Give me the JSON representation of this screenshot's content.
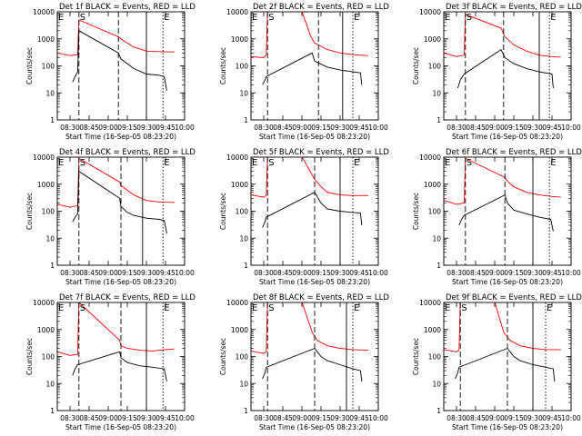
{
  "chart_data": {
    "type": "line",
    "y_scale": "log",
    "ylim": [
      1,
      10000
    ],
    "xlim": [
      "08:20",
      "10:00"
    ],
    "y_ticks": [
      1,
      10,
      100,
      1000,
      10000
    ],
    "y_tick_labels": [
      "1",
      "10",
      "100",
      "1000",
      "10000"
    ],
    "x_ticks": [
      "08:30",
      "08:45",
      "09:00",
      "09:15",
      "09:30",
      "09:45",
      "10:00"
    ],
    "x_tick_labels": [
      "08:30",
      "08:45",
      "09:00",
      "09:15",
      "09:30",
      "09:45",
      "10:00"
    ],
    "ylabel": "Counts/sec",
    "xlabel": "Start Time (16-Sep-05 08:23:20)",
    "colors": {
      "events": "#000000",
      "lld": "#ff0000",
      "markers": "#000000"
    },
    "panels": [
      {
        "title": "Det 1f  BLACK = Events, RED = LLD",
        "markers": [
          {
            "label": "E",
            "x": "08:20",
            "style": "dotted"
          },
          {
            "label": "S",
            "x": "08:37",
            "style": "dashed"
          },
          {
            "label": "",
            "x": "09:08",
            "style": "dashed"
          },
          {
            "label": "",
            "x": "09:30",
            "style": "solid"
          },
          {
            "label": "E",
            "x": "09:43",
            "style": "dotted"
          }
        ],
        "lld": {
          "x": [
            "08:20",
            "08:30",
            "08:36",
            "08:37",
            "09:08",
            "09:10",
            "09:15",
            "09:20",
            "09:30",
            "09:45",
            "09:52"
          ],
          "y": [
            300,
            240,
            260,
            5000,
            1200,
            1000,
            700,
            500,
            350,
            330,
            330
          ]
        },
        "events": {
          "x": [
            "08:32",
            "08:34",
            "08:36",
            "08:37",
            "09:08",
            "09:10",
            "09:15",
            "09:20",
            "09:30",
            "09:40",
            "09:44",
            "09:46"
          ],
          "y": [
            25,
            40,
            60,
            2000,
            300,
            180,
            120,
            80,
            50,
            45,
            40,
            12
          ]
        }
      },
      {
        "title": "Det 2f  BLACK = Events, RED = LLD",
        "markers": [
          {
            "label": "E",
            "x": "08:20",
            "style": "dotted"
          },
          {
            "label": "S",
            "x": "08:33",
            "style": "dashed"
          },
          {
            "label": "",
            "x": "09:13",
            "style": "dashed"
          },
          {
            "label": "",
            "x": "09:32",
            "style": "solid"
          },
          {
            "label": "E",
            "x": "09:40",
            "style": "dotted"
          }
        ],
        "lld": {
          "x": [
            "08:20",
            "08:30",
            "08:32",
            "08:33",
            "09:00",
            "09:07",
            "09:10",
            "09:20",
            "09:30",
            "09:40",
            "09:52"
          ],
          "y": [
            220,
            200,
            250,
            12000,
            12000,
            1200,
            700,
            400,
            300,
            260,
            240
          ]
        },
        "events": {
          "x": [
            "08:29",
            "08:31",
            "08:32",
            "09:08",
            "09:10",
            "09:20",
            "09:30",
            "09:40",
            "09:46",
            "09:47"
          ],
          "y": [
            20,
            30,
            40,
            300,
            150,
            90,
            70,
            60,
            55,
            20
          ]
        }
      },
      {
        "title": "Det 3f  BLACK = Events, RED = LLD",
        "markers": [
          {
            "label": "E",
            "x": "08:20",
            "style": "dotted"
          },
          {
            "label": "S",
            "x": "08:37",
            "style": "dashed"
          },
          {
            "label": "",
            "x": "09:07",
            "style": "dashed"
          },
          {
            "label": "",
            "x": "09:35",
            "style": "solid"
          },
          {
            "label": "E",
            "x": "09:43",
            "style": "dotted"
          }
        ],
        "lld": {
          "x": [
            "08:20",
            "08:30",
            "08:36",
            "08:37",
            "09:05",
            "09:08",
            "09:15",
            "09:25",
            "09:35",
            "09:45",
            "09:52"
          ],
          "y": [
            300,
            220,
            250,
            8000,
            2500,
            1200,
            600,
            350,
            250,
            220,
            210
          ]
        },
        "events": {
          "x": [
            "08:31",
            "08:33",
            "08:36",
            "09:05",
            "09:08",
            "09:15",
            "09:25",
            "09:35",
            "09:45",
            "09:46"
          ],
          "y": [
            15,
            30,
            50,
            400,
            200,
            120,
            80,
            60,
            50,
            15
          ]
        }
      },
      {
        "title": "Det 4f  BLACK = Events, RED = LLD",
        "markers": [
          {
            "label": "E",
            "x": "08:20",
            "style": "dotted"
          },
          {
            "label": "S",
            "x": "08:37",
            "style": "dashed"
          },
          {
            "label": "",
            "x": "09:10",
            "style": "dashed"
          },
          {
            "label": "",
            "x": "09:27",
            "style": "solid"
          },
          {
            "label": "E",
            "x": "09:43",
            "style": "dotted"
          }
        ],
        "lld": {
          "x": [
            "08:20",
            "08:30",
            "08:36",
            "08:37",
            "09:09",
            "09:10",
            "09:15",
            "09:20",
            "09:30",
            "09:40",
            "09:52"
          ],
          "y": [
            180,
            140,
            160,
            9000,
            1200,
            900,
            600,
            400,
            250,
            220,
            210
          ]
        },
        "events": {
          "x": [
            "08:32",
            "08:34",
            "08:36",
            "08:37",
            "09:09",
            "09:10",
            "09:15",
            "09:20",
            "09:30",
            "09:40",
            "09:44",
            "09:46"
          ],
          "y": [
            40,
            60,
            80,
            3000,
            300,
            150,
            90,
            70,
            55,
            50,
            45,
            15
          ]
        }
      },
      {
        "title": "Det 5f  BLACK = Events, RED = LLD",
        "markers": [
          {
            "label": "E",
            "x": "08:20",
            "style": "dotted"
          },
          {
            "label": "S",
            "x": "08:33",
            "style": "dashed"
          },
          {
            "label": "",
            "x": "09:10",
            "style": "dashed"
          },
          {
            "label": "",
            "x": "09:30",
            "style": "solid"
          },
          {
            "label": "E",
            "x": "09:40",
            "style": "dotted"
          }
        ],
        "lld": {
          "x": [
            "08:20",
            "08:30",
            "08:32",
            "08:33",
            "09:00",
            "09:10",
            "09:15",
            "09:20",
            "09:30",
            "09:40",
            "09:52"
          ],
          "y": [
            400,
            330,
            380,
            12000,
            12000,
            1500,
            800,
            500,
            400,
            380,
            380
          ]
        },
        "events": {
          "x": [
            "08:29",
            "08:31",
            "08:32",
            "09:10",
            "09:15",
            "09:20",
            "09:30",
            "09:40",
            "09:46",
            "09:47"
          ],
          "y": [
            25,
            40,
            60,
            500,
            200,
            120,
            100,
            90,
            85,
            30
          ]
        }
      },
      {
        "title": "Det 6f  BLACK = Events, RED = LLD",
        "markers": [
          {
            "label": "E",
            "x": "08:20",
            "style": "dotted"
          },
          {
            "label": "S",
            "x": "08:37",
            "style": "dashed"
          },
          {
            "label": "",
            "x": "09:08",
            "style": "dashed"
          },
          {
            "label": "",
            "x": "09:30",
            "style": "solid"
          },
          {
            "label": "E",
            "x": "09:43",
            "style": "dotted"
          }
        ],
        "lld": {
          "x": [
            "08:20",
            "08:30",
            "08:36",
            "08:37",
            "09:08",
            "09:10",
            "09:15",
            "09:25",
            "09:35",
            "09:45",
            "09:52"
          ],
          "y": [
            250,
            180,
            200,
            9000,
            1800,
            1300,
            800,
            500,
            400,
            350,
            330
          ]
        },
        "events": {
          "x": [
            "08:32",
            "08:34",
            "08:36",
            "09:08",
            "09:10",
            "09:15",
            "09:25",
            "09:35",
            "09:44",
            "09:46"
          ],
          "y": [
            30,
            50,
            70,
            400,
            200,
            110,
            80,
            60,
            50,
            18
          ]
        }
      },
      {
        "title": "Det 7f  BLACK = Events, RED = LLD",
        "markers": [
          {
            "label": "E",
            "x": "08:20",
            "style": "dotted"
          },
          {
            "label": "S",
            "x": "08:37",
            "style": "dashed"
          },
          {
            "label": "",
            "x": "09:10",
            "style": "dashed"
          },
          {
            "label": "",
            "x": "09:30",
            "style": "solid"
          },
          {
            "label": "E",
            "x": "09:43",
            "style": "dotted"
          }
        ],
        "lld": {
          "x": [
            "08:20",
            "08:30",
            "08:36",
            "08:37",
            "09:09",
            "09:10",
            "09:15",
            "09:25",
            "09:35",
            "09:45",
            "09:52"
          ],
          "y": [
            150,
            110,
            120,
            10000,
            400,
            250,
            200,
            170,
            160,
            180,
            190
          ]
        },
        "events": {
          "x": [
            "08:32",
            "08:34",
            "08:36",
            "09:09",
            "09:10",
            "09:15",
            "09:25",
            "09:35",
            "09:44",
            "09:46"
          ],
          "y": [
            20,
            35,
            50,
            150,
            90,
            60,
            45,
            40,
            35,
            12
          ]
        }
      },
      {
        "title": "Det 8f  BLACK = Events, RED = LLD",
        "markers": [
          {
            "label": "E",
            "x": "08:20",
            "style": "dotted"
          },
          {
            "label": "S",
            "x": "08:33",
            "style": "dashed"
          },
          {
            "label": "",
            "x": "09:10",
            "style": "dashed"
          },
          {
            "label": "",
            "x": "09:35",
            "style": "solid"
          },
          {
            "label": "E",
            "x": "09:40",
            "style": "dotted"
          }
        ],
        "lld": {
          "x": [
            "08:20",
            "08:30",
            "08:32",
            "08:33",
            "09:00",
            "09:08",
            "09:12",
            "09:20",
            "09:30",
            "09:40",
            "09:52"
          ],
          "y": [
            160,
            130,
            150,
            12000,
            12000,
            800,
            400,
            250,
            200,
            180,
            170
          ]
        },
        "events": {
          "x": [
            "08:29",
            "08:31",
            "08:32",
            "09:10",
            "09:15",
            "09:20",
            "09:30",
            "09:40",
            "09:46",
            "09:47"
          ],
          "y": [
            15,
            25,
            40,
            200,
            100,
            70,
            50,
            35,
            30,
            12
          ]
        }
      },
      {
        "title": "Det 9f  BLACK = Events, RED = LLD",
        "markers": [
          {
            "label": "E",
            "x": "08:20",
            "style": "dotted"
          },
          {
            "label": "S",
            "x": "08:33",
            "style": "dashed"
          },
          {
            "label": "",
            "x": "09:10",
            "style": "dashed"
          },
          {
            "label": "",
            "x": "09:30",
            "style": "solid"
          },
          {
            "label": "E",
            "x": "09:40",
            "style": "dotted"
          }
        ],
        "lld": {
          "x": [
            "08:20",
            "08:30",
            "08:32",
            "08:33",
            "09:00",
            "09:07",
            "09:12",
            "09:20",
            "09:30",
            "09:40",
            "09:52"
          ],
          "y": [
            180,
            150,
            170,
            12000,
            12000,
            800,
            400,
            250,
            200,
            180,
            180
          ]
        },
        "events": {
          "x": [
            "08:29",
            "08:31",
            "08:32",
            "09:10",
            "09:15",
            "09:20",
            "09:30",
            "09:40",
            "09:46",
            "09:47"
          ],
          "y": [
            15,
            25,
            40,
            200,
            100,
            70,
            50,
            40,
            35,
            12
          ]
        }
      }
    ]
  }
}
